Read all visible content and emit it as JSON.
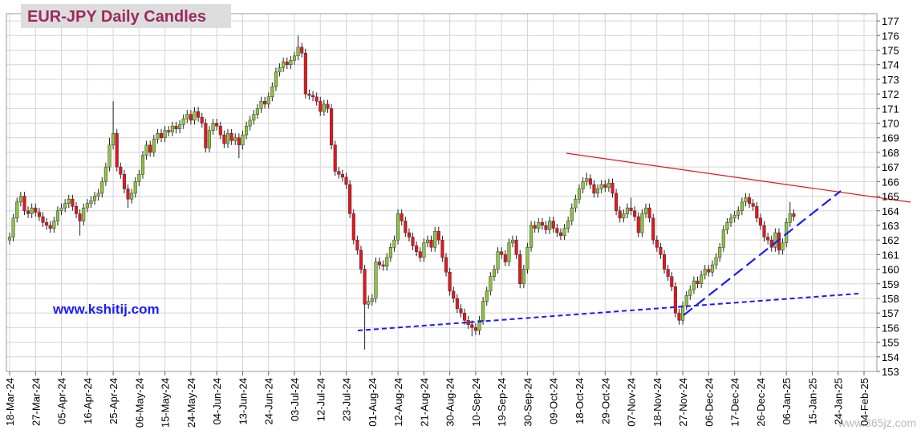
{
  "chart_data": {
    "type": "candlestick",
    "title": "EUR-JPY Daily  Candles",
    "annotation": "www.kshitij.com",
    "watermark": "www.365jz.com",
    "categories": [
      "18-Mar-24",
      null,
      null,
      null,
      null,
      null,
      null,
      "27-Mar-24",
      null,
      null,
      null,
      null,
      null,
      null,
      "05-Apr-24",
      null,
      null,
      null,
      null,
      null,
      null,
      "16-Apr-24",
      null,
      null,
      null,
      null,
      null,
      null,
      "25-Apr-24",
      null,
      null,
      null,
      null,
      null,
      null,
      "06-May-24",
      null,
      null,
      null,
      null,
      null,
      null,
      "15-May-24",
      null,
      null,
      null,
      null,
      null,
      null,
      "24-May-24",
      null,
      null,
      null,
      null,
      null,
      null,
      "04-Jun-24",
      null,
      null,
      null,
      null,
      null,
      null,
      "13-Jun-24",
      null,
      null,
      null,
      null,
      null,
      null,
      "24-Jun-24",
      null,
      null,
      null,
      null,
      null,
      null,
      "03-Jul-24",
      null,
      null,
      null,
      null,
      null,
      null,
      "12-Jul-24",
      null,
      null,
      null,
      null,
      null,
      null,
      "23-Jul-24",
      null,
      null,
      null,
      null,
      null,
      null,
      "01-Aug-24",
      null,
      null,
      null,
      null,
      null,
      null,
      "12-Aug-24",
      null,
      null,
      null,
      null,
      null,
      null,
      "21-Aug-24",
      null,
      null,
      null,
      null,
      null,
      null,
      "30-Aug-24",
      null,
      null,
      null,
      null,
      null,
      null,
      "10-Sep-24",
      null,
      null,
      null,
      null,
      null,
      null,
      "19-Sep-24",
      null,
      null,
      null,
      null,
      null,
      null,
      "30-Sep-24",
      null,
      null,
      null,
      null,
      null,
      null,
      "09-Oct-24",
      null,
      null,
      null,
      null,
      null,
      null,
      "18-Oct-24",
      null,
      null,
      null,
      null,
      null,
      null,
      "29-Oct-24",
      null,
      null,
      null,
      null,
      null,
      null,
      "07-Nov-24",
      null,
      null,
      null,
      null,
      null,
      null,
      "18-Nov-24",
      null,
      null,
      null,
      null,
      null,
      null,
      "27-Nov-24",
      null,
      null,
      null,
      null,
      null,
      null,
      "06-Dec-24",
      null,
      null,
      null,
      null,
      null,
      null,
      "17-Dec-24",
      null,
      null,
      null,
      null,
      null,
      null,
      "26-Dec-24",
      null,
      null,
      null,
      null,
      null,
      null,
      "06-Jan-25",
      null,
      null,
      null,
      null,
      null,
      null,
      "15-Jan-25",
      null,
      null,
      null,
      null,
      null,
      null,
      "24-Jan-25",
      null,
      null,
      null,
      null,
      null,
      null,
      "04-Feb-25"
    ],
    "open": [
      162.0,
      162.2,
      163.5,
      164.6,
      165.0,
      164.0,
      163.8,
      164.2,
      163.9,
      163.6,
      163.2,
      163.0,
      162.8,
      163.3,
      164.0,
      164.2,
      164.5,
      164.8,
      164.3,
      163.8,
      163.3,
      164.2,
      164.5,
      164.7,
      165.0,
      165.2,
      166.0,
      167.0,
      168.5,
      169.3,
      167.0,
      166.5,
      165.5,
      164.8,
      165.2,
      166.0,
      166.5,
      167.8,
      168.5,
      168.0,
      168.9,
      169.3,
      169.0,
      169.5,
      169.4,
      169.8,
      169.6,
      169.9,
      170.3,
      170.6,
      170.2,
      170.8,
      170.4,
      170.0,
      168.3,
      169.5,
      170.0,
      169.8,
      169.2,
      168.6,
      169.3,
      168.8,
      169.0,
      168.5,
      169.2,
      169.8,
      170.2,
      170.6,
      171.0,
      171.5,
      171.3,
      171.8,
      172.5,
      173.5,
      173.8,
      174.2,
      174.0,
      174.3,
      174.6,
      175.2,
      174.8,
      172.0,
      171.9,
      171.8,
      171.5,
      170.8,
      171.3,
      171.0,
      168.5,
      166.7,
      166.5,
      166.3,
      165.8,
      163.8,
      162.0,
      161.3,
      160.0,
      157.6,
      157.8,
      158.0,
      160.5,
      160.3,
      160.2,
      160.8,
      161.5,
      162.0,
      163.8,
      163.3,
      162.5,
      162.2,
      161.6,
      161.2,
      160.8,
      161.8,
      162.0,
      161.5,
      162.6,
      162.0,
      160.8,
      159.8,
      158.5,
      158.0,
      157.3,
      157.0,
      156.5,
      156.2,
      156.0,
      155.8,
      156.5,
      157.8,
      158.5,
      159.5,
      160.0,
      161.2,
      161.0,
      160.5,
      161.8,
      162.0,
      161.0,
      159.0,
      160.0,
      161.5,
      163.0,
      162.8,
      163.2,
      163.0,
      162.7,
      163.3,
      162.8,
      162.5,
      162.3,
      162.8,
      163.3,
      164.2,
      164.8,
      165.5,
      166.0,
      166.2,
      165.8,
      165.2,
      165.5,
      165.8,
      165.6,
      165.9,
      165.2,
      164.0,
      163.5,
      163.8,
      164.2,
      164.0,
      163.6,
      162.5,
      163.8,
      164.2,
      163.5,
      162.0,
      161.5,
      161.0,
      160.0,
      159.5,
      158.8,
      157.0,
      156.5,
      157.5,
      158.2,
      158.6,
      159.2,
      159.0,
      159.6,
      160.0,
      159.8,
      160.3,
      160.8,
      161.5,
      162.7,
      163.2,
      163.5,
      163.7,
      164.0,
      164.6,
      164.9,
      164.5,
      164.3,
      163.5,
      163.0,
      162.2,
      162.0,
      161.5,
      162.5,
      161.3,
      161.8,
      163.2,
      163.8,
      null,
      null,
      null,
      null,
      null,
      null,
      null,
      null,
      null,
      null,
      null,
      null,
      null,
      null,
      null,
      null,
      null,
      null,
      null
    ],
    "high": [
      162.5,
      163.8,
      164.9,
      165.3,
      165.3,
      164.3,
      164.5,
      164.5,
      164.2,
      163.9,
      163.5,
      163.3,
      163.6,
      164.3,
      164.5,
      164.8,
      165.1,
      165.1,
      164.6,
      164.1,
      164.5,
      164.8,
      165.0,
      165.3,
      165.5,
      166.3,
      167.3,
      169.0,
      171.5,
      169.6,
      167.3,
      166.8,
      165.8,
      165.5,
      166.3,
      166.8,
      168.1,
      168.8,
      168.8,
      169.2,
      169.6,
      169.6,
      169.8,
      169.8,
      170.1,
      170.1,
      170.2,
      170.6,
      170.9,
      170.9,
      171.1,
      171.1,
      170.7,
      170.3,
      169.8,
      170.3,
      170.3,
      170.1,
      169.5,
      169.6,
      169.6,
      169.3,
      169.3,
      169.5,
      170.1,
      170.5,
      170.9,
      171.3,
      171.8,
      171.8,
      172.1,
      172.8,
      173.8,
      174.1,
      174.5,
      174.5,
      174.6,
      174.9,
      176.0,
      175.5,
      175.1,
      172.3,
      172.2,
      172.1,
      171.8,
      171.6,
      171.6,
      171.3,
      168.8,
      167.0,
      166.8,
      166.6,
      166.1,
      164.1,
      162.3,
      161.6,
      160.3,
      158.2,
      158.3,
      160.8,
      160.8,
      160.6,
      161.1,
      161.8,
      162.3,
      164.1,
      164.1,
      163.6,
      162.8,
      162.5,
      161.9,
      161.5,
      162.1,
      162.3,
      162.3,
      162.9,
      162.9,
      162.3,
      161.1,
      160.1,
      158.8,
      158.3,
      157.6,
      157.3,
      156.8,
      156.5,
      156.3,
      156.8,
      158.1,
      158.8,
      159.8,
      160.3,
      161.5,
      161.5,
      161.3,
      162.1,
      162.3,
      162.3,
      161.3,
      160.3,
      161.8,
      163.3,
      163.3,
      163.5,
      163.5,
      163.3,
      163.6,
      163.6,
      163.1,
      162.8,
      163.1,
      163.6,
      164.5,
      165.1,
      165.8,
      166.3,
      166.6,
      166.5,
      166.1,
      165.8,
      166.1,
      166.1,
      166.2,
      166.2,
      165.5,
      164.3,
      164.1,
      164.5,
      164.9,
      164.3,
      163.9,
      164.1,
      164.5,
      164.5,
      163.8,
      162.3,
      161.8,
      161.3,
      160.3,
      159.8,
      159.1,
      157.3,
      157.8,
      158.5,
      158.9,
      159.5,
      159.5,
      159.9,
      160.3,
      160.3,
      160.6,
      161.1,
      161.8,
      163.0,
      163.5,
      163.8,
      164.0,
      164.3,
      164.9,
      165.2,
      165.2,
      164.8,
      164.6,
      163.8,
      163.3,
      162.5,
      162.3,
      162.8,
      162.8,
      162.1,
      163.5,
      164.6,
      164.1,
      null,
      null,
      null,
      null,
      null,
      null,
      null,
      null,
      null,
      null,
      null,
      null,
      null,
      null,
      null,
      null,
      null,
      null,
      null
    ],
    "low": [
      161.7,
      161.9,
      163.2,
      164.3,
      163.7,
      163.5,
      163.5,
      163.6,
      163.3,
      162.9,
      162.7,
      162.5,
      162.5,
      163.0,
      163.7,
      163.9,
      164.2,
      164.0,
      163.5,
      162.3,
      163.0,
      163.9,
      164.2,
      164.4,
      164.7,
      164.9,
      165.7,
      166.7,
      168.2,
      166.7,
      166.2,
      165.2,
      164.2,
      164.5,
      164.9,
      165.7,
      166.2,
      167.5,
      167.7,
      167.7,
      168.6,
      168.7,
      168.7,
      169.1,
      169.1,
      169.3,
      169.3,
      169.6,
      170.0,
      169.9,
      169.9,
      170.1,
      169.7,
      168.0,
      168.0,
      169.2,
      169.5,
      168.9,
      168.3,
      168.3,
      168.5,
      168.5,
      167.6,
      168.2,
      168.9,
      169.5,
      169.9,
      170.3,
      170.7,
      171.0,
      171.0,
      171.5,
      172.2,
      173.2,
      173.5,
      173.7,
      173.7,
      174.0,
      174.3,
      174.5,
      171.7,
      171.6,
      171.5,
      171.2,
      170.5,
      170.5,
      170.7,
      168.2,
      166.4,
      166.2,
      166.0,
      165.5,
      163.5,
      161.7,
      161.0,
      159.7,
      154.5,
      157.3,
      157.5,
      157.7,
      160.0,
      159.9,
      159.9,
      160.5,
      161.2,
      161.7,
      163.0,
      162.2,
      161.9,
      161.3,
      160.9,
      160.5,
      160.5,
      161.5,
      161.2,
      161.2,
      161.7,
      160.5,
      159.5,
      158.2,
      157.7,
      157.0,
      156.7,
      156.2,
      155.9,
      155.4,
      155.5,
      155.5,
      156.2,
      157.5,
      158.2,
      159.2,
      159.7,
      160.7,
      160.2,
      160.2,
      161.5,
      160.7,
      158.7,
      158.7,
      159.7,
      161.2,
      162.5,
      162.5,
      162.7,
      162.4,
      162.4,
      162.5,
      162.2,
      162.0,
      162.0,
      162.5,
      163.0,
      163.9,
      164.5,
      165.2,
      165.7,
      165.5,
      164.9,
      164.9,
      165.2,
      165.3,
      165.3,
      164.9,
      163.7,
      163.2,
      163.2,
      163.5,
      163.7,
      163.3,
      162.2,
      162.2,
      163.5,
      163.2,
      161.7,
      161.2,
      160.7,
      159.7,
      159.2,
      158.5,
      156.7,
      156.2,
      156.2,
      157.2,
      157.9,
      158.3,
      158.7,
      158.7,
      159.3,
      159.5,
      159.5,
      160.0,
      160.5,
      161.2,
      162.4,
      162.9,
      163.2,
      163.4,
      163.7,
      164.3,
      164.2,
      164.0,
      163.2,
      162.7,
      161.9,
      161.7,
      161.2,
      161.2,
      161.0,
      161.0,
      161.5,
      162.9,
      163.3,
      null,
      null,
      null,
      null,
      null,
      null,
      null,
      null,
      null,
      null,
      null,
      null,
      null,
      null,
      null,
      null,
      null,
      null,
      null
    ],
    "close": [
      162.2,
      163.5,
      164.6,
      165.0,
      164.0,
      163.8,
      164.2,
      163.9,
      163.6,
      163.2,
      163.0,
      162.8,
      163.3,
      164.0,
      164.2,
      164.5,
      164.8,
      164.3,
      163.8,
      163.3,
      164.2,
      164.5,
      164.7,
      165.0,
      165.2,
      166.0,
      167.0,
      168.5,
      169.3,
      167.0,
      166.5,
      165.5,
      164.8,
      165.2,
      166.0,
      166.5,
      167.8,
      168.5,
      168.0,
      168.9,
      169.3,
      169.0,
      169.5,
      169.4,
      169.8,
      169.6,
      169.9,
      170.3,
      170.6,
      170.2,
      170.8,
      170.4,
      170.0,
      168.3,
      169.5,
      170.0,
      169.8,
      169.2,
      168.6,
      169.3,
      168.8,
      169.0,
      168.5,
      169.2,
      169.8,
      170.2,
      170.6,
      171.0,
      171.5,
      171.3,
      171.8,
      172.5,
      173.5,
      173.8,
      174.2,
      174.0,
      174.3,
      174.6,
      175.2,
      174.8,
      172.0,
      171.9,
      171.8,
      171.5,
      170.8,
      171.3,
      171.0,
      168.5,
      166.7,
      166.5,
      166.3,
      165.8,
      163.8,
      162.0,
      161.3,
      160.0,
      157.6,
      157.8,
      158.0,
      160.5,
      160.3,
      160.2,
      160.8,
      161.5,
      162.0,
      163.8,
      163.3,
      162.5,
      162.2,
      161.6,
      161.2,
      160.8,
      161.8,
      162.0,
      161.5,
      162.6,
      162.0,
      160.8,
      159.8,
      158.5,
      158.0,
      157.3,
      157.0,
      156.5,
      156.2,
      156.0,
      155.8,
      156.5,
      157.8,
      158.5,
      159.5,
      160.0,
      161.2,
      161.0,
      160.5,
      161.8,
      162.0,
      161.0,
      159.0,
      160.0,
      161.5,
      163.0,
      162.8,
      163.2,
      163.0,
      162.7,
      163.3,
      162.8,
      162.5,
      162.3,
      162.8,
      163.3,
      164.2,
      164.8,
      165.5,
      166.0,
      166.2,
      165.8,
      165.2,
      165.5,
      165.8,
      165.6,
      165.9,
      165.2,
      164.0,
      163.5,
      163.8,
      164.2,
      164.0,
      163.6,
      162.5,
      163.8,
      164.2,
      163.5,
      162.0,
      161.5,
      161.0,
      160.0,
      159.5,
      158.8,
      157.0,
      156.5,
      157.5,
      158.2,
      158.6,
      159.2,
      159.0,
      159.6,
      160.0,
      159.8,
      160.3,
      160.8,
      161.5,
      162.7,
      163.2,
      163.5,
      163.7,
      164.0,
      164.6,
      164.9,
      164.5,
      164.3,
      163.5,
      163.0,
      162.2,
      162.0,
      161.5,
      162.5,
      161.3,
      161.8,
      163.2,
      163.8,
      163.6,
      null,
      null,
      null,
      null,
      null,
      null,
      null,
      null,
      null,
      null,
      null,
      null,
      null,
      null,
      null,
      null,
      null,
      null,
      null
    ],
    "up_color": "#8cc63f",
    "down_color": "#e8141e",
    "ylim": [
      153,
      177.5
    ],
    "yticks": [
      153,
      154,
      155,
      156,
      157,
      158,
      159,
      160,
      161,
      162,
      163,
      164,
      165,
      166,
      167,
      168,
      169,
      170,
      171,
      172,
      173,
      174,
      175,
      176,
      177
    ],
    "grid": true
  }
}
